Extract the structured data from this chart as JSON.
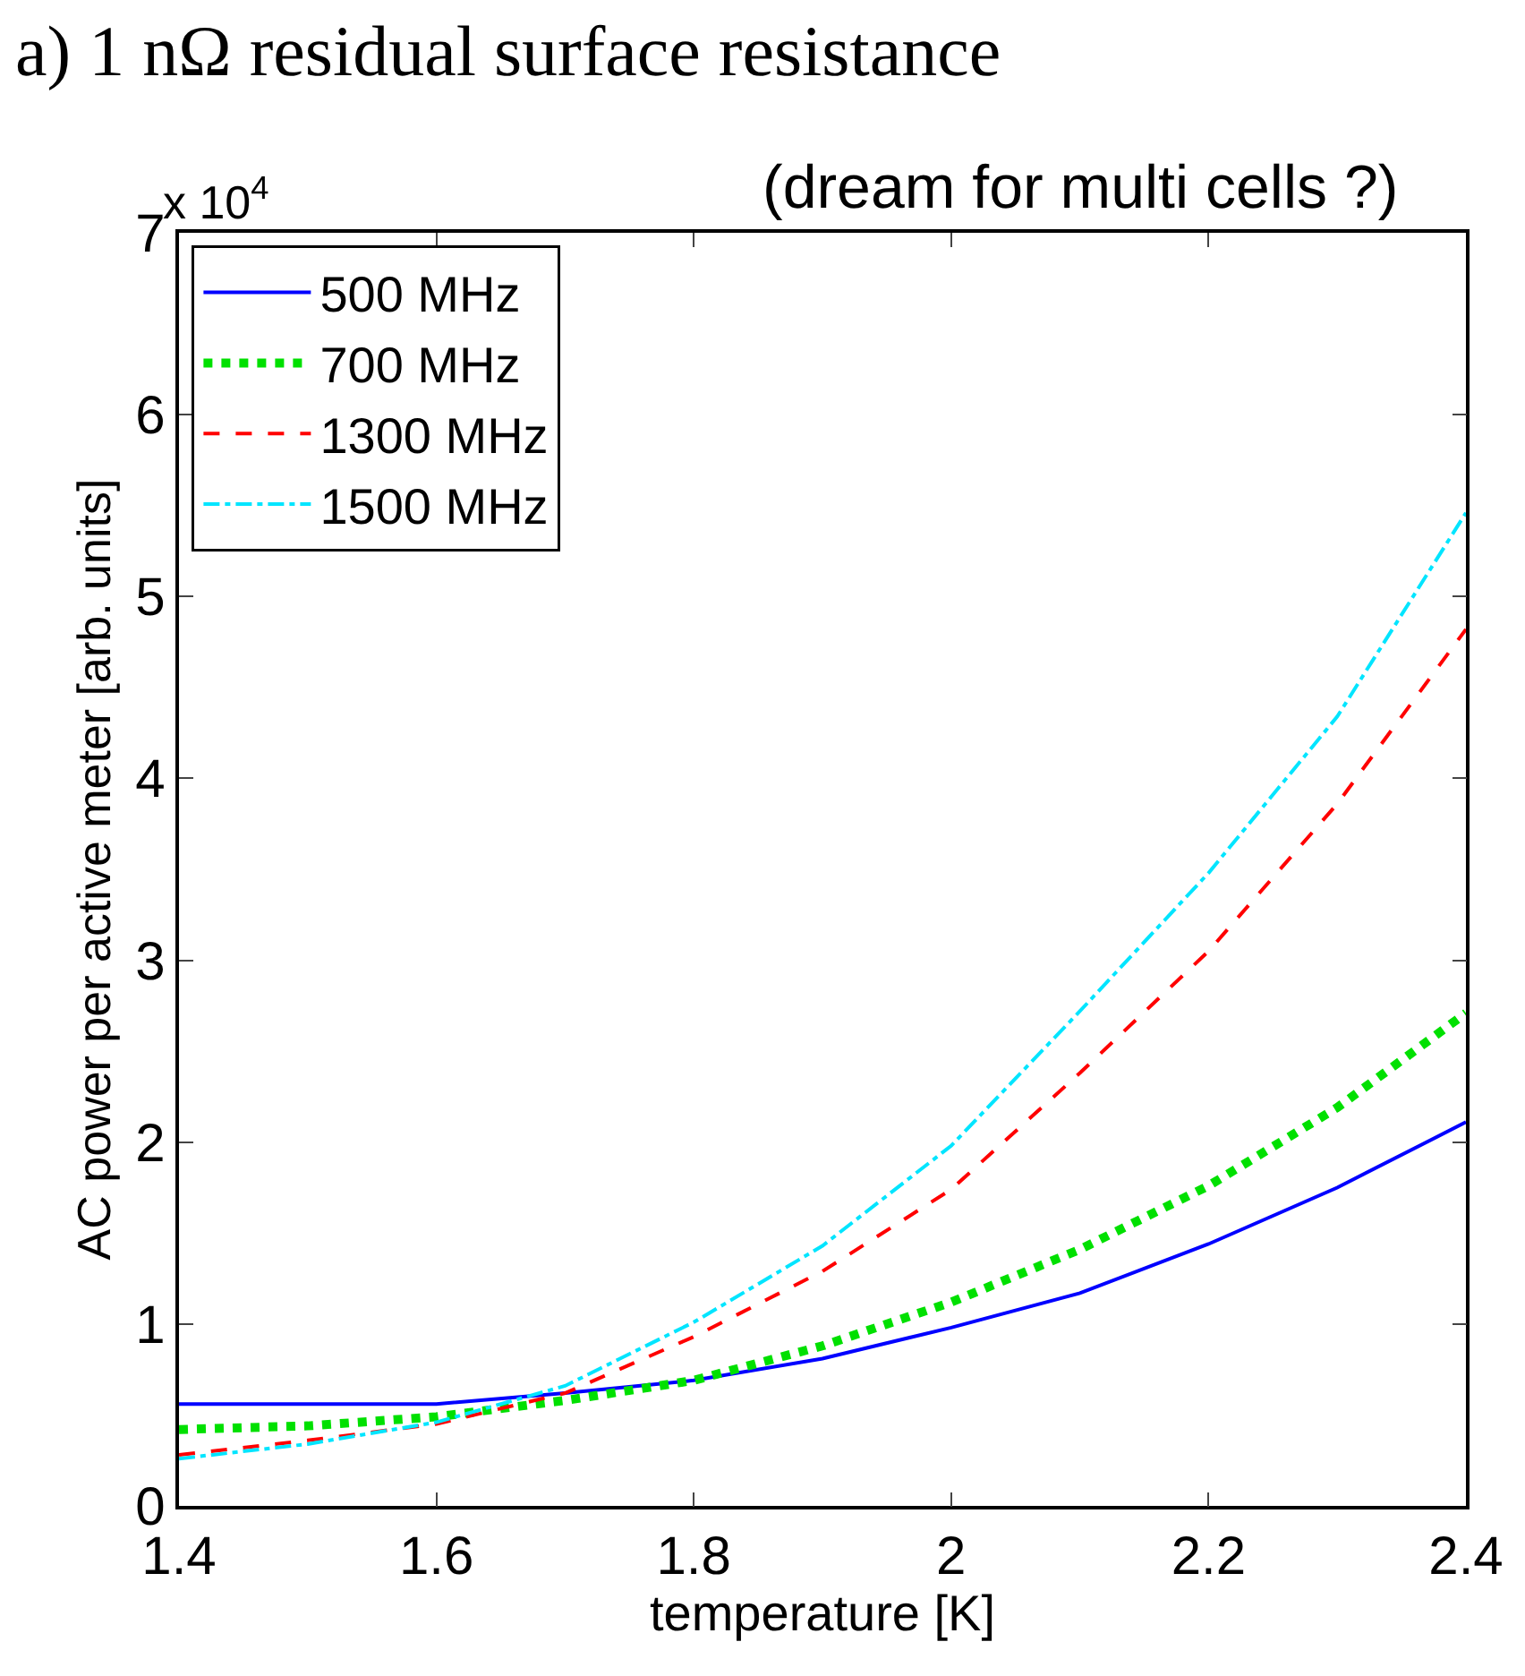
{
  "chart_data": {
    "type": "line",
    "title": "a) 1 nΩ residual surface resistance",
    "subtitle": "(dream for multi cells ?)",
    "xlabel": "temperature [K]",
    "ylabel": "AC power per active meter [arb. units]",
    "annotations": [
      "x 10$^{4}$"
    ],
    "x": [
      1.4,
      1.5,
      1.6,
      1.7,
      1.8,
      1.9,
      2.0,
      2.1,
      2.2,
      2.3,
      2.4
    ],
    "series": [
      {
        "name": "500 MHz",
        "color": "#0000ff",
        "line_style": "solid",
        "values": [
          0.56,
          0.56,
          0.56,
          0.62,
          0.69,
          0.81,
          0.98,
          1.17,
          1.44,
          1.75,
          2.11
        ]
      },
      {
        "name": "700 MHz",
        "color": "#00e000",
        "line_style": "dotted",
        "values": [
          0.42,
          0.44,
          0.49,
          0.58,
          0.69,
          0.88,
          1.12,
          1.41,
          1.76,
          2.19,
          2.71
        ]
      },
      {
        "name": "1300 MHz",
        "color": "#ff0000",
        "line_style": "dashed",
        "values": [
          0.28,
          0.36,
          0.45,
          0.62,
          0.93,
          1.29,
          1.74,
          2.38,
          3.05,
          3.86,
          4.82
        ]
      },
      {
        "name": "1500 MHz",
        "color": "#00e5ff",
        "line_style": "dashdot",
        "values": [
          0.26,
          0.34,
          0.46,
          0.66,
          1.01,
          1.43,
          1.98,
          2.72,
          3.48,
          4.34,
          5.46
        ]
      }
    ],
    "xlim": [
      1.4,
      2.4
    ],
    "xticks": [
      1.4,
      1.6,
      1.8,
      {
        "value": 2.0,
        "label": "2"
      },
      2.2,
      2.4
    ],
    "ylim": [
      0,
      7
    ],
    "yticks": [
      0,
      1,
      2,
      3,
      4,
      5,
      6,
      7
    ],
    "legend": "top left"
  }
}
